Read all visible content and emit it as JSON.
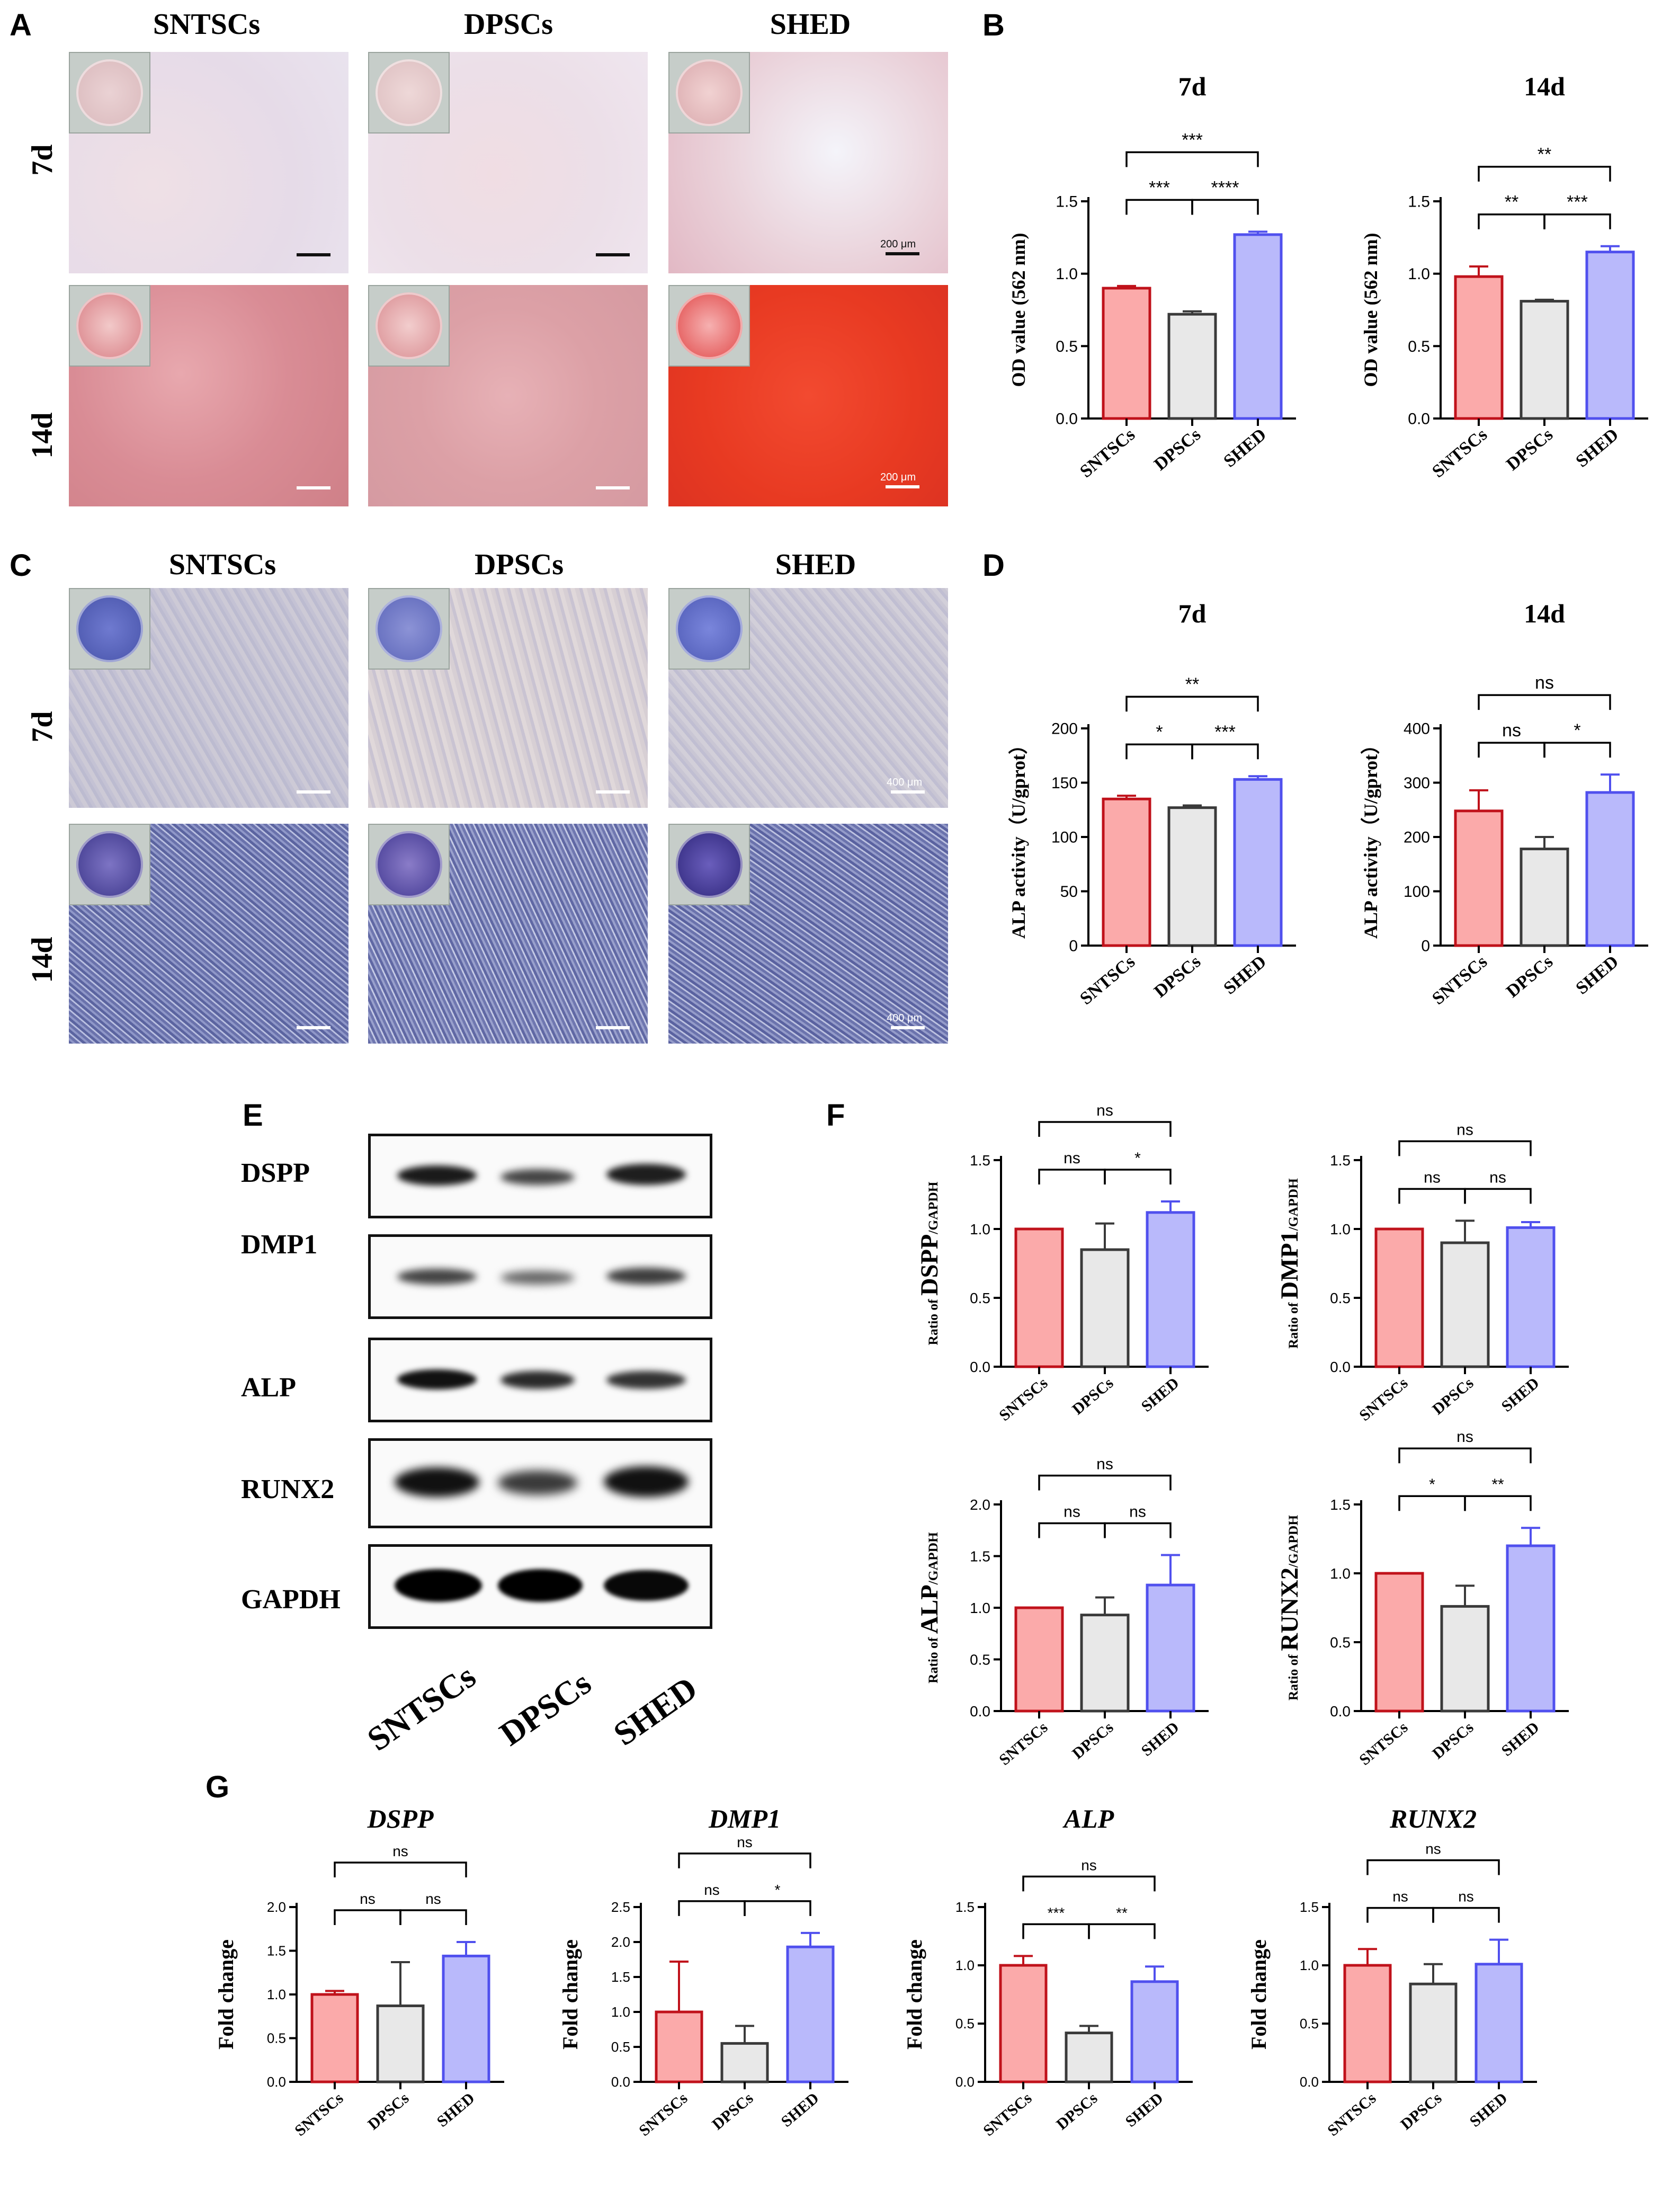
{
  "panels": {
    "A": {
      "label": "A",
      "columns": [
        "SNTSCs",
        "DPSCs",
        "SHED"
      ],
      "rows": [
        "7d",
        "14d"
      ],
      "scalebar": "200 μm"
    },
    "C": {
      "label": "C",
      "columns": [
        "SNTSCs",
        "DPSCs",
        "SHED"
      ],
      "rows": [
        "7d",
        "14d"
      ],
      "scalebar": "400 μm"
    },
    "E": {
      "label": "E",
      "proteins": [
        "DSPP",
        "DMP1",
        "ALP",
        "RUNX2",
        "GAPDH"
      ],
      "lanes": [
        "SNTSCs",
        "DPSCs",
        "SHED"
      ]
    },
    "B": {
      "label": "B"
    },
    "D": {
      "label": "D"
    },
    "F": {
      "label": "F"
    },
    "G": {
      "label": "G"
    }
  },
  "colors": {
    "fill": [
      "#fbaaaa",
      "#e8e8e8",
      "#b9b9fb"
    ],
    "stroke": [
      "#c0121b",
      "#3a3a3a",
      "#5050ee"
    ]
  },
  "chart_data": [
    {
      "id": "B1",
      "type": "bar",
      "title": "7d",
      "title_italic": false,
      "ylabel": "OD value (562 nm)",
      "ylabel_parts": null,
      "categories": [
        "SNTSCs",
        "DPSCs",
        "SHED"
      ],
      "values": [
        0.9,
        0.72,
        1.27
      ],
      "errors": [
        0.015,
        0.02,
        0.02
      ],
      "ylim": [
        0,
        1.5
      ],
      "yticks": [
        "0.0",
        "0.5",
        "1.0",
        "1.5"
      ],
      "comparisons": [
        {
          "from": 0,
          "to": 2,
          "label": "***"
        },
        {
          "from": 0,
          "to": 1,
          "label": "***"
        },
        {
          "from": 1,
          "to": 2,
          "label": "****"
        }
      ]
    },
    {
      "id": "B2",
      "type": "bar",
      "title": "14d",
      "title_italic": false,
      "ylabel": "OD value (562 nm)",
      "ylabel_parts": null,
      "categories": [
        "SNTSCs",
        "DPSCs",
        "SHED"
      ],
      "values": [
        0.98,
        0.81,
        1.15
      ],
      "errors": [
        0.07,
        0.01,
        0.04
      ],
      "ylim": [
        0,
        1.5
      ],
      "yticks": [
        "0.0",
        "0.5",
        "1.0",
        "1.5"
      ],
      "comparisons": [
        {
          "from": 0,
          "to": 2,
          "label": "**"
        },
        {
          "from": 0,
          "to": 1,
          "label": "**"
        },
        {
          "from": 1,
          "to": 2,
          "label": "***"
        }
      ]
    },
    {
      "id": "D1",
      "type": "bar",
      "title": "7d",
      "title_italic": false,
      "ylabel": "ALP activity（U/gprot）",
      "ylabel_parts": null,
      "categories": [
        "SNTSCs",
        "DPSCs",
        "SHED"
      ],
      "values": [
        135,
        127,
        153
      ],
      "errors": [
        3,
        2,
        3
      ],
      "ylim": [
        0,
        200
      ],
      "yticks": [
        "0",
        "50",
        "100",
        "150",
        "200"
      ],
      "comparisons": [
        {
          "from": 0,
          "to": 2,
          "label": "**"
        },
        {
          "from": 0,
          "to": 1,
          "label": "*"
        },
        {
          "from": 1,
          "to": 2,
          "label": "***"
        }
      ]
    },
    {
      "id": "D2",
      "type": "bar",
      "title": "14d",
      "title_italic": false,
      "ylabel": "ALP activity（U/gprot）",
      "ylabel_parts": null,
      "categories": [
        "SNTSCs",
        "DPSCs",
        "SHED"
      ],
      "values": [
        248,
        178,
        282
      ],
      "errors": [
        38,
        22,
        33
      ],
      "ylim": [
        0,
        400
      ],
      "yticks": [
        "0",
        "100",
        "200",
        "300",
        "400"
      ],
      "comparisons": [
        {
          "from": 0,
          "to": 2,
          "label": "ns"
        },
        {
          "from": 0,
          "to": 1,
          "label": "ns"
        },
        {
          "from": 1,
          "to": 2,
          "label": "*"
        }
      ]
    },
    {
      "id": "F1",
      "type": "bar",
      "title": "",
      "title_italic": false,
      "ylabel": "",
      "ylabel_parts": [
        "Ratio of ",
        "DSPP",
        "/GAPDH"
      ],
      "categories": [
        "SNTSCs",
        "DPSCs",
        "SHED"
      ],
      "values": [
        1.0,
        0.85,
        1.12
      ],
      "errors": [
        0,
        0.19,
        0.08
      ],
      "ylim": [
        0,
        1.5
      ],
      "yticks": [
        "0.0",
        "0.5",
        "1.0",
        "1.5"
      ],
      "comparisons": [
        {
          "from": 0,
          "to": 2,
          "label": "ns"
        },
        {
          "from": 0,
          "to": 1,
          "label": "ns"
        },
        {
          "from": 1,
          "to": 2,
          "label": "*"
        }
      ]
    },
    {
      "id": "F2",
      "type": "bar",
      "title": "",
      "title_italic": false,
      "ylabel": "",
      "ylabel_parts": [
        "Ratio of ",
        "DMP1",
        "/GAPDH"
      ],
      "categories": [
        "SNTSCs",
        "DPSCs",
        "SHED"
      ],
      "values": [
        1.0,
        0.9,
        1.01
      ],
      "errors": [
        0,
        0.16,
        0.04
      ],
      "ylim": [
        0,
        1.5
      ],
      "yticks": [
        "0.0",
        "0.5",
        "1.0",
        "1.5"
      ],
      "comparisons": [
        {
          "from": 0,
          "to": 2,
          "label": "ns"
        },
        {
          "from": 0,
          "to": 1,
          "label": "ns"
        },
        {
          "from": 1,
          "to": 2,
          "label": "ns"
        }
      ]
    },
    {
      "id": "F3",
      "type": "bar",
      "title": "",
      "title_italic": false,
      "ylabel": "",
      "ylabel_parts": [
        "Ratio of ",
        "ALP",
        "/GAPDH"
      ],
      "categories": [
        "SNTSCs",
        "DPSCs",
        "SHED"
      ],
      "values": [
        1.0,
        0.93,
        1.22
      ],
      "errors": [
        0,
        0.17,
        0.29
      ],
      "ylim": [
        0,
        2.0
      ],
      "yticks": [
        "0.0",
        "0.5",
        "1.0",
        "1.5",
        "2.0"
      ],
      "comparisons": [
        {
          "from": 0,
          "to": 2,
          "label": "ns"
        },
        {
          "from": 0,
          "to": 1,
          "label": "ns"
        },
        {
          "from": 1,
          "to": 2,
          "label": "ns"
        }
      ]
    },
    {
      "id": "F4",
      "type": "bar",
      "title": "",
      "title_italic": false,
      "ylabel": "",
      "ylabel_parts": [
        "Ratio of ",
        "RUNX2",
        "/GAPDH"
      ],
      "categories": [
        "SNTSCs",
        "DPSCs",
        "SHED"
      ],
      "values": [
        1.0,
        0.76,
        1.2
      ],
      "errors": [
        0,
        0.15,
        0.13
      ],
      "ylim": [
        0,
        1.5
      ],
      "yticks": [
        "0.0",
        "0.5",
        "1.0",
        "1.5"
      ],
      "comparisons": [
        {
          "from": 0,
          "to": 2,
          "label": "ns"
        },
        {
          "from": 0,
          "to": 1,
          "label": "*"
        },
        {
          "from": 1,
          "to": 2,
          "label": "**"
        }
      ]
    },
    {
      "id": "G1",
      "type": "bar",
      "title": "DSPP",
      "title_italic": true,
      "ylabel": "Fold change",
      "ylabel_parts": null,
      "categories": [
        "SNTSCs",
        "DPSCs",
        "SHED"
      ],
      "values": [
        1.0,
        0.87,
        1.44
      ],
      "errors": [
        0.04,
        0.5,
        0.16
      ],
      "ylim": [
        0,
        2.0
      ],
      "yticks": [
        "0.0",
        "0.5",
        "1.0",
        "1.5",
        "2.0"
      ],
      "comparisons": [
        {
          "from": 0,
          "to": 2,
          "label": "ns"
        },
        {
          "from": 0,
          "to": 1,
          "label": "ns"
        },
        {
          "from": 1,
          "to": 2,
          "label": "ns"
        }
      ]
    },
    {
      "id": "G2",
      "type": "bar",
      "title": "DMP1",
      "title_italic": true,
      "ylabel": "Fold change",
      "ylabel_parts": null,
      "categories": [
        "SNTSCs",
        "DPSCs",
        "SHED"
      ],
      "values": [
        1.0,
        0.55,
        1.93
      ],
      "errors": [
        0.72,
        0.25,
        0.2
      ],
      "ylim": [
        0,
        2.5
      ],
      "yticks": [
        "0.0",
        "0.5",
        "1.0",
        "1.5",
        "2.0",
        "2.5"
      ],
      "comparisons": [
        {
          "from": 0,
          "to": 2,
          "label": "ns"
        },
        {
          "from": 0,
          "to": 1,
          "label": "ns"
        },
        {
          "from": 1,
          "to": 2,
          "label": "*"
        }
      ]
    },
    {
      "id": "G3",
      "type": "bar",
      "title": "ALP",
      "title_italic": true,
      "ylabel": "Fold change",
      "ylabel_parts": null,
      "categories": [
        "SNTSCs",
        "DPSCs",
        "SHED"
      ],
      "values": [
        1.0,
        0.42,
        0.86
      ],
      "errors": [
        0.08,
        0.06,
        0.13
      ],
      "ylim": [
        0,
        1.5
      ],
      "yticks": [
        "0.0",
        "0.5",
        "1.0",
        "1.5"
      ],
      "comparisons": [
        {
          "from": 0,
          "to": 2,
          "label": "ns"
        },
        {
          "from": 0,
          "to": 1,
          "label": "***"
        },
        {
          "from": 1,
          "to": 2,
          "label": "**"
        }
      ]
    },
    {
      "id": "G4",
      "type": "bar",
      "title": "RUNX2",
      "title_italic": true,
      "ylabel": "Fold change",
      "ylabel_parts": null,
      "categories": [
        "SNTSCs",
        "DPSCs",
        "SHED"
      ],
      "values": [
        1.0,
        0.84,
        1.01
      ],
      "errors": [
        0.14,
        0.17,
        0.21
      ],
      "ylim": [
        0,
        1.5
      ],
      "yticks": [
        "0.0",
        "0.5",
        "1.0",
        "1.5"
      ],
      "comparisons": [
        {
          "from": 0,
          "to": 2,
          "label": "ns"
        },
        {
          "from": 0,
          "to": 1,
          "label": "ns"
        },
        {
          "from": 1,
          "to": 2,
          "label": "ns"
        }
      ]
    }
  ]
}
